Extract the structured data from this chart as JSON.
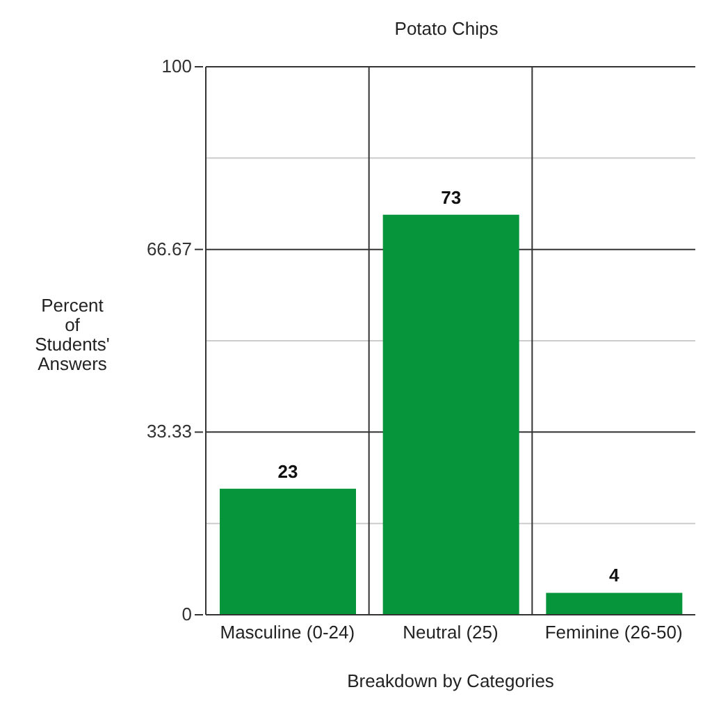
{
  "chart_data": {
    "type": "bar",
    "title": "Potato Chips",
    "xlabel": "Breakdown by Categories",
    "ylabel": "Percent of Students' Answers",
    "categories": [
      "Masculine (0-24)",
      "Neutral (25)",
      "Feminine (26-50)"
    ],
    "values": [
      23,
      73,
      4
    ],
    "color": "#06953a",
    "ylim": [
      0,
      100
    ],
    "yticks": [
      0,
      {
        "value": 16.67,
        "label": null
      },
      33.33,
      {
        "value": 50,
        "label": null
      },
      66.67,
      {
        "value": 83.33,
        "label": null
      },
      100
    ],
    "grid": true,
    "data_labels": true
  }
}
